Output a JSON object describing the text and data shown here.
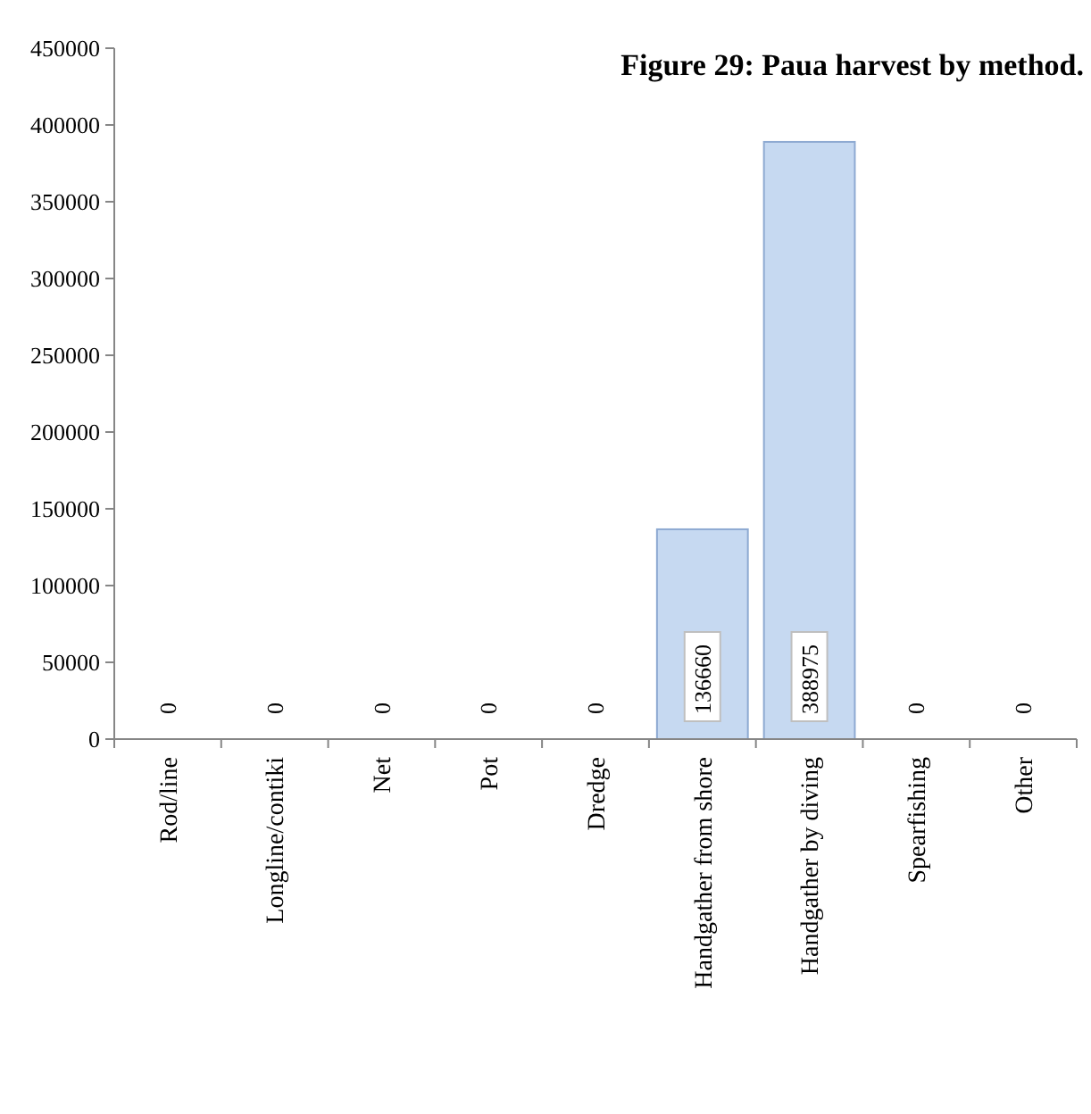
{
  "chart_data": {
    "type": "bar",
    "title": "Figure 29: Paua harvest by method.",
    "categories": [
      "Rod/line",
      "Longline/contiki",
      "Net",
      "Pot",
      "Dredge",
      "Handgather from shore",
      "Handgather by diving",
      "Spearfishing",
      "Other"
    ],
    "values": [
      0,
      0,
      0,
      0,
      0,
      136660,
      388975,
      0,
      0
    ],
    "color": "#c6d9f1",
    "ylim": [
      0,
      450000
    ],
    "yticks": [
      0,
      50000,
      100000,
      150000,
      200000,
      250000,
      300000,
      350000,
      400000,
      450000
    ],
    "data_labels": true,
    "grid": false
  }
}
